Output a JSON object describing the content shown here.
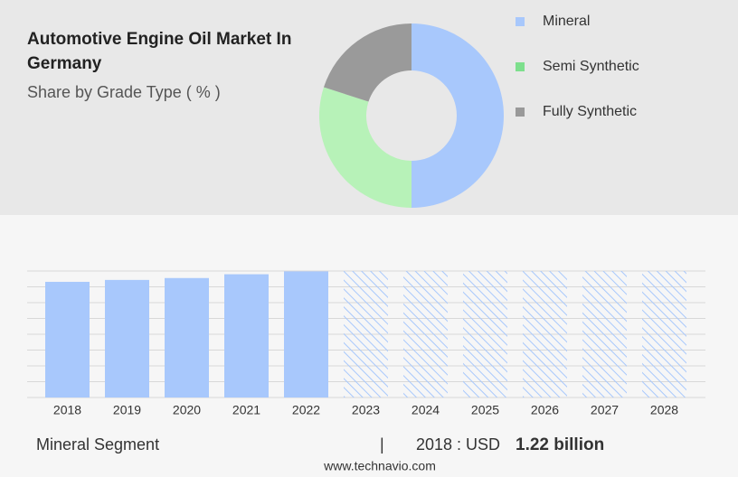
{
  "chart_data": [
    {
      "type": "donut",
      "title": "Automotive Engine Oil Market In Germany",
      "subtitle": "Share by Grade Type ( % )",
      "categories": [
        "Mineral",
        "Semi Synthetic",
        "Fully Synthetic"
      ],
      "values": [
        50,
        30,
        20
      ],
      "colors": [
        "#a8c8fc",
        "#b7f2b8",
        "#9a9a9a"
      ],
      "legend_colors": [
        "#a8c8fc",
        "#7ddf8d",
        "#999999"
      ]
    },
    {
      "type": "bar",
      "categories": [
        "2018",
        "2019",
        "2020",
        "2021",
        "2022",
        "2023",
        "2024",
        "2025",
        "2026",
        "2027",
        "2028"
      ],
      "values": [
        1.22,
        1.24,
        1.26,
        1.3,
        1.33,
        null,
        null,
        null,
        null,
        null,
        null
      ],
      "color": "#a8c8fc",
      "ylim": [
        0,
        1.334
      ],
      "grid": true
    }
  ],
  "footer": {
    "segment": "Mineral Segment",
    "separator": "|",
    "year_label": "2018 : USD",
    "value_label": "1.22 billion",
    "source": "www.technavio.com"
  }
}
